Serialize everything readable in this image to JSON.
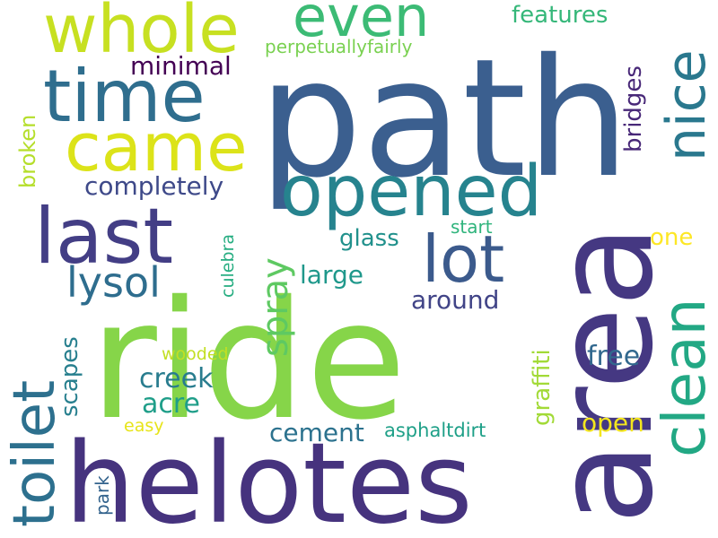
{
  "background": "#ffffff",
  "words": [
    {
      "key": "path",
      "text": "path",
      "color": "#3b5f8f"
    },
    {
      "key": "ride",
      "text": "ride",
      "color": "#86d549"
    },
    {
      "key": "area",
      "text": "area",
      "color": "#453882"
    },
    {
      "key": "helotes",
      "text": "helotes",
      "color": "#46337e"
    },
    {
      "key": "whole",
      "text": "whole",
      "color": "#c7e021"
    },
    {
      "key": "time",
      "text": "time",
      "color": "#2f6e8e"
    },
    {
      "key": "came",
      "text": "came",
      "color": "#dce319"
    },
    {
      "key": "even",
      "text": "even",
      "color": "#3cbb75"
    },
    {
      "key": "opened",
      "text": "opened",
      "color": "#26838e"
    },
    {
      "key": "last",
      "text": "last",
      "color": "#433e85"
    },
    {
      "key": "lot",
      "text": "lot",
      "color": "#3b5a8c"
    },
    {
      "key": "nice",
      "text": "nice",
      "color": "#2a788e"
    },
    {
      "key": "clean",
      "text": "clean",
      "color": "#22a884"
    },
    {
      "key": "toilet",
      "text": "toilet",
      "color": "#2d708e"
    },
    {
      "key": "spray",
      "text": "spray",
      "color": "#5ec962"
    },
    {
      "key": "lysol",
      "text": "lysol",
      "color": "#2e6d8e"
    },
    {
      "key": "completely",
      "text": "completely",
      "color": "#3e4989"
    },
    {
      "key": "minimal",
      "text": "minimal",
      "color": "#440154"
    },
    {
      "key": "features",
      "text": "features",
      "color": "#35b779"
    },
    {
      "key": "perpetuallyfairly",
      "text": "perpetuallyfairly",
      "color": "#7ad151"
    },
    {
      "key": "bridges",
      "text": "bridges",
      "color": "#482878"
    },
    {
      "key": "broken",
      "text": "broken",
      "color": "#b5de2b"
    },
    {
      "key": "glass",
      "text": "glass",
      "color": "#21918c"
    },
    {
      "key": "start",
      "text": "start",
      "color": "#2fb47c"
    },
    {
      "key": "one",
      "text": "one",
      "color": "#fde725"
    },
    {
      "key": "culebra",
      "text": "culebra",
      "color": "#26ad81"
    },
    {
      "key": "large",
      "text": "large",
      "color": "#1f988b"
    },
    {
      "key": "around",
      "text": "around",
      "color": "#414487"
    },
    {
      "key": "graffiti",
      "text": "graffiti",
      "color": "#a2da37"
    },
    {
      "key": "free",
      "text": "free",
      "color": "#31688e"
    },
    {
      "key": "scapes",
      "text": "scapes",
      "color": "#277f8e"
    },
    {
      "key": "wooded",
      "text": "wooded",
      "color": "#c2df23"
    },
    {
      "key": "creek",
      "text": "creek",
      "color": "#287c8e"
    },
    {
      "key": "acre",
      "text": "acre",
      "color": "#1f9e89"
    },
    {
      "key": "open",
      "text": "open",
      "color": "#f4e61e"
    },
    {
      "key": "easy",
      "text": "easy",
      "color": "#e7e419"
    },
    {
      "key": "cement",
      "text": "cement",
      "color": "#2c728e"
    },
    {
      "key": "asphaltdirt",
      "text": "asphaltdirt",
      "color": "#1fa088"
    },
    {
      "key": "park",
      "text": "park",
      "color": "#33638d"
    }
  ]
}
